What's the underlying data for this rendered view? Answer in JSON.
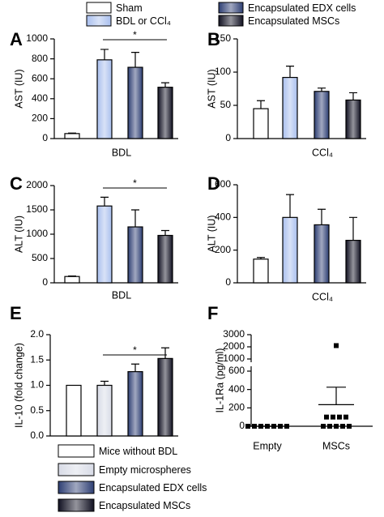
{
  "legend_top": {
    "items": [
      {
        "name": "Sham",
        "color": "#ffffff"
      },
      {
        "name": "BDL or CCl₄",
        "color": "#a9bfee"
      },
      {
        "name": "Encapsulated EDX cells",
        "color": "#2d3e73"
      },
      {
        "name": "Encapsulated MSCs",
        "color": "#111122"
      }
    ]
  },
  "legend_bottom": {
    "items": [
      {
        "name": "Mice without BDL",
        "color": "#ffffff"
      },
      {
        "name": "Empty microspheres",
        "color": "#d8dbe6"
      },
      {
        "name": "Encapsulated EDX cells",
        "color": "#2d3e73"
      },
      {
        "name": "Encapsulated MSCs",
        "color": "#111122"
      }
    ]
  },
  "chart_data": [
    {
      "type": "bar",
      "label": "A",
      "y_label": "AST (IU)",
      "x_label": "BDL",
      "categories": [
        null,
        null,
        null,
        null
      ],
      "values": [
        50,
        790,
        715,
        515
      ],
      "errors": [
        5,
        105,
        150,
        45
      ],
      "colors": [
        "#ffffff",
        "#a9bfee",
        "#2d3e73",
        "#111122"
      ],
      "ylim": [
        0,
        1000
      ],
      "yticks": [
        0,
        200,
        400,
        600,
        800,
        1000
      ],
      "significance": "*"
    },
    {
      "type": "bar",
      "label": "B",
      "y_label": "AST (IU)",
      "x_label": "CCl₄",
      "categories": [
        null,
        null,
        null,
        null
      ],
      "values": [
        45,
        92,
        71,
        58
      ],
      "errors": [
        12,
        17,
        5,
        11
      ],
      "colors": [
        "#ffffff",
        "#a9bfee",
        "#2d3e73",
        "#111122"
      ],
      "ylim": [
        0,
        150
      ],
      "yticks": [
        0,
        50,
        100,
        150
      ]
    },
    {
      "type": "bar",
      "label": "C",
      "y_label": "ALT (IU)",
      "x_label": "BDL",
      "categories": [
        null,
        null,
        null,
        null
      ],
      "values": [
        130,
        1580,
        1150,
        975
      ],
      "errors": [
        10,
        180,
        350,
        100
      ],
      "colors": [
        "#ffffff",
        "#a9bfee",
        "#2d3e73",
        "#111122"
      ],
      "ylim": [
        0,
        2000
      ],
      "yticks": [
        0,
        500,
        1000,
        1500,
        2000
      ],
      "significance": "*"
    },
    {
      "type": "bar",
      "label": "D",
      "y_label": "ALT (IU)",
      "x_label": "CCl₄",
      "categories": [
        null,
        null,
        null,
        null
      ],
      "values": [
        145,
        400,
        355,
        260
      ],
      "errors": [
        10,
        140,
        95,
        140
      ],
      "colors": [
        "#ffffff",
        "#a9bfee",
        "#2d3e73",
        "#111122"
      ],
      "ylim": [
        0,
        600
      ],
      "yticks": [
        0,
        200,
        400,
        600
      ]
    },
    {
      "type": "bar",
      "label": "E",
      "y_label": "IL-10 (fold change)",
      "categories": [
        null,
        null,
        null,
        null
      ],
      "values": [
        1.0,
        1.0,
        1.27,
        1.53
      ],
      "errors": [
        null,
        0.08,
        0.15,
        0.21
      ],
      "colors": [
        "#ffffff",
        "#d8dbe6",
        "#2d3e73",
        "#111122"
      ],
      "ylim": [
        0,
        2
      ],
      "yticks": [
        {
          "value": 0,
          "label": "0.0"
        },
        {
          "value": 0.5,
          "label": "0.5"
        },
        {
          "value": 1,
          "label": "1.0"
        },
        {
          "value": 1.5,
          "label": "1.5"
        },
        {
          "value": 2,
          "label": "2.0"
        }
      ],
      "significance": "*"
    },
    {
      "type": "strip",
      "label": "F",
      "y_label": "IL-1Ra (pg/ml)",
      "categories": [
        "Empty",
        "MSCs"
      ],
      "groups": [
        [
          0,
          0,
          0,
          0,
          0,
          0,
          0
        ],
        [
          2100,
          100,
          100,
          100,
          100,
          0,
          0,
          0,
          0,
          0
        ]
      ],
      "means": [
        0,
        235
      ],
      "errors": [
        0,
        190
      ],
      "ylim": [
        0,
        3000
      ],
      "axis_break": [
        600,
        1000
      ],
      "yticks": [
        0,
        200,
        400,
        600,
        1000,
        2000,
        3000
      ]
    }
  ]
}
